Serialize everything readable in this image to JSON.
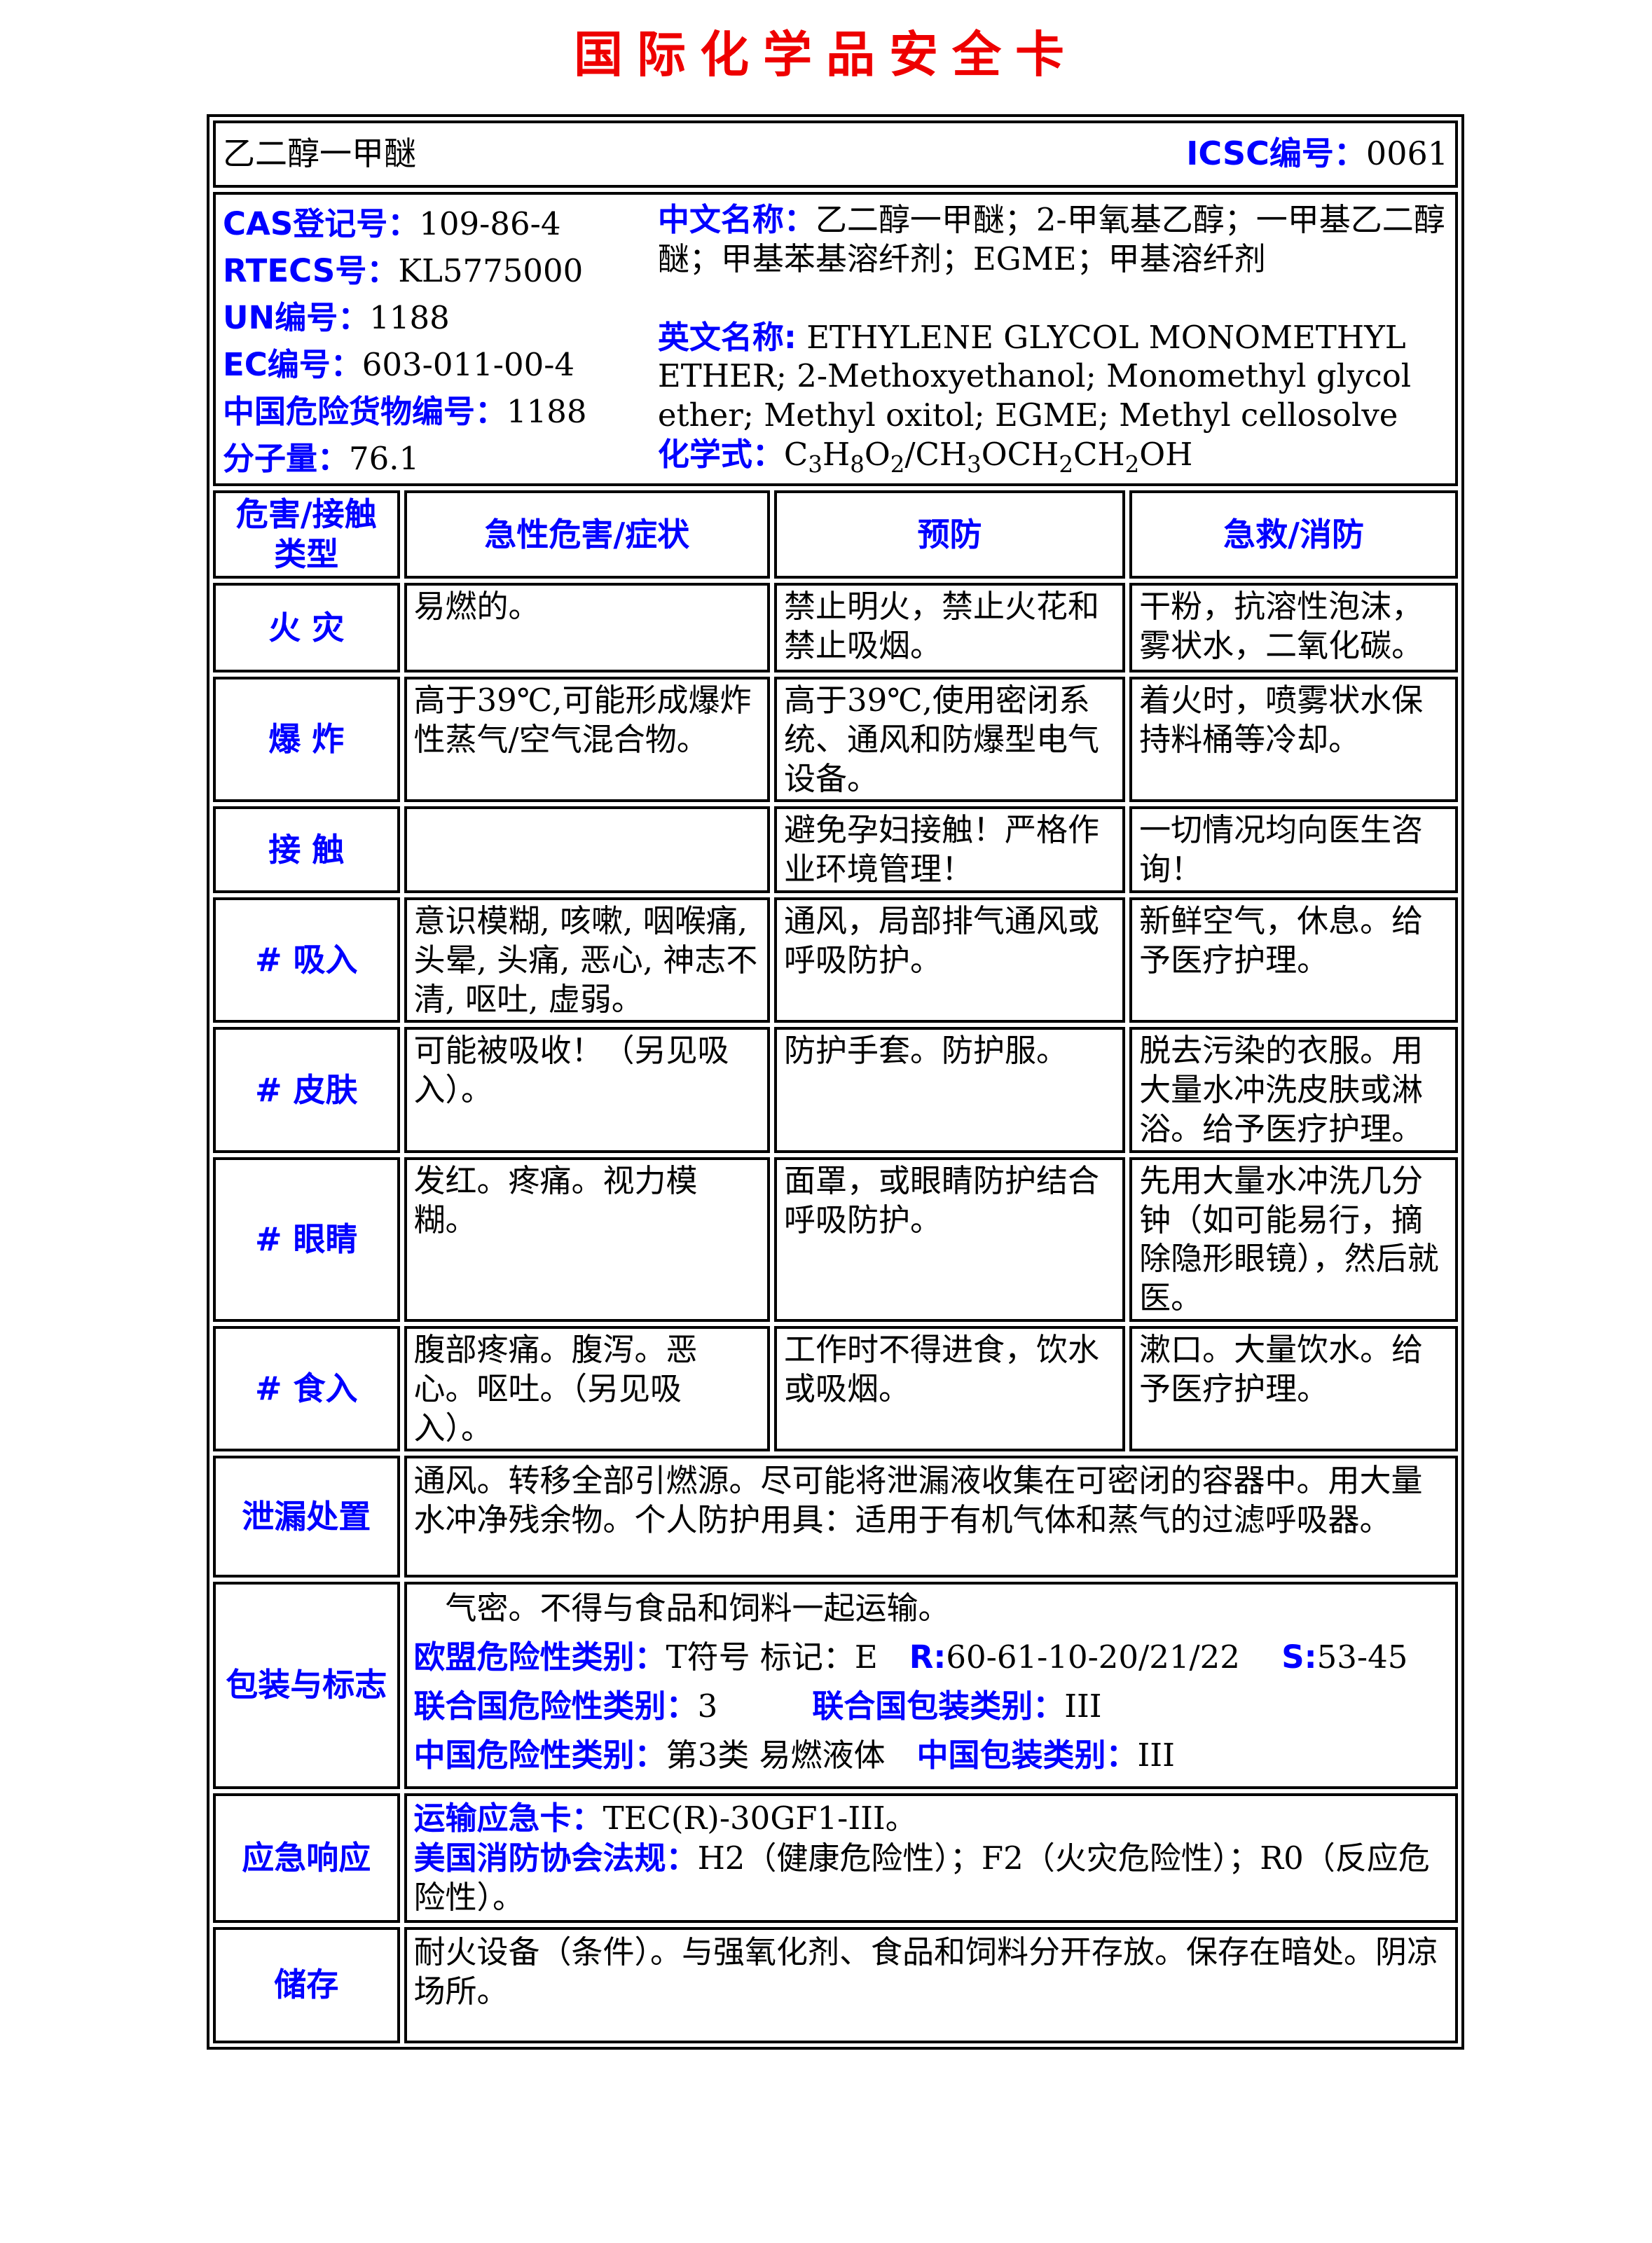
{
  "colors": {
    "accent_blue": "#0000ff",
    "title_red": "#ee0000",
    "border_black": "#000000"
  },
  "page_title": "国际化学品安全卡",
  "header": {
    "name": "乙二醇一甲醚",
    "icsc_label": "ICSC编号：",
    "icsc_number": "0061"
  },
  "identifiers": [
    {
      "label": "CAS登记号：",
      "value": "109-86-4"
    },
    {
      "label": "RTECS号：",
      "value": "KL5775000"
    },
    {
      "label": "UN编号：",
      "value": "1188"
    },
    {
      "label": "EC编号：",
      "value": "603-011-00-4"
    },
    {
      "label": "中国危险货物编号：",
      "value": "1188"
    },
    {
      "label": "分子量：",
      "value": "76.1"
    }
  ],
  "names": {
    "cn_label": "中文名称：",
    "cn_value": "乙二醇一甲醚；2-甲氧基乙醇；一甲基乙二醇醚；甲基苯基溶纤剂；EGME；甲基溶纤剂",
    "en_label": "英文名称:",
    "en_value": "ETHYLENE GLYCOL MONOMETHYL ETHER; 2-Methoxyethanol; Monomethyl glycol ether; Methyl oxitol; EGME; Methyl cellosolve",
    "formula_label": "化学式：",
    "formula_parts": [
      {
        "text": "C"
      },
      {
        "text": "3",
        "sub": true
      },
      {
        "text": "H"
      },
      {
        "text": "8",
        "sub": true
      },
      {
        "text": "O"
      },
      {
        "text": "2",
        "sub": true
      },
      {
        "text": "/CH"
      },
      {
        "text": "3",
        "sub": true
      },
      {
        "text": "OCH"
      },
      {
        "text": "2",
        "sub": true
      },
      {
        "text": "CH"
      },
      {
        "text": "2",
        "sub": true
      },
      {
        "text": "OH"
      }
    ]
  },
  "hazard_table": {
    "headers": {
      "type": "危害/接触\n类型",
      "symptoms": "急性危害/症状",
      "prevention": "预防",
      "response": "急救/消防"
    },
    "rows": [
      {
        "type": "火 灾",
        "symptoms": "易燃的。",
        "prevention": "禁止明火，禁止火花和禁止吸烟。",
        "response": "干粉，抗溶性泡沫，雾状水，二氧化碳。"
      },
      {
        "type": "爆 炸",
        "symptoms": "高于39℃,可能形成爆炸性蒸气/空气混合物。",
        "prevention": "高于39℃,使用密闭系统、通风和防爆型电气设备。",
        "response": "着火时，喷雾状水保持料桶等冷却。"
      },
      {
        "type": "接 触",
        "symptoms": "",
        "prevention": "避免孕妇接触！严格作业环境管理！",
        "response": "一切情况均向医生咨询！"
      },
      {
        "type": "# 吸入",
        "symptoms": "意识模糊, 咳嗽, 咽喉痛, 头晕, 头痛, 恶心, 神志不清, 呕吐, 虚弱。",
        "prevention": "通风，局部排气通风或呼吸防护。",
        "response": "新鲜空气，休息。给予医疗护理。"
      },
      {
        "type": "# 皮肤",
        "symptoms": "可能被吸收！（另见吸入）。",
        "prevention": "防护手套。防护服。",
        "response": "脱去污染的衣服。用大量水冲洗皮肤或淋浴。给予医疗护理。"
      },
      {
        "type": "# 眼睛",
        "symptoms": "发红。疼痛。视力模糊。",
        "prevention": "面罩，或眼睛防护结合呼吸防护。",
        "response": "先用大量水冲洗几分钟（如可能易行，摘除隐形眼镜），然后就医。"
      },
      {
        "type": "# 食入",
        "symptoms": "腹部疼痛。腹泻。恶心。呕吐。（另见吸入）。",
        "prevention": "工作时不得进食，饮水或吸烟。",
        "response": "漱口。大量饮水。给予医疗护理。"
      }
    ]
  },
  "bottom_sections": [
    {
      "label": "泄漏处置",
      "lines": [
        [
          {
            "text": "通风。转移全部引燃源。尽可能将泄漏液收集在可密闭的容器中。用大量水冲净残余物。个人防护用具：适用于有机气体和蒸气的过滤呼吸器。"
          }
        ]
      ]
    },
    {
      "label": "包装与标志",
      "lines": [
        [
          {
            "text": "　气密。不得与食品和饲料一起运输。"
          }
        ],
        [
          {
            "text": "欧盟危险性类别：",
            "blue": true
          },
          {
            "text": "T符号 标记：E　"
          },
          {
            "text": "R:",
            "blue": true
          },
          {
            "text": "60-61-10-20/21/22　 "
          },
          {
            "text": "S:",
            "blue": true
          },
          {
            "text": "53-45"
          }
        ],
        [
          {
            "text": "联合国危险性类别：",
            "blue": true
          },
          {
            "text": "3　　　"
          },
          {
            "text": "联合国包装类别：",
            "blue": true
          },
          {
            "text": "III"
          }
        ],
        [
          {
            "text": "中国危险性类别：",
            "blue": true
          },
          {
            "text": "第3类 易燃液体　"
          },
          {
            "text": "中国包装类别：",
            "blue": true
          },
          {
            "text": "III"
          }
        ]
      ]
    },
    {
      "label": "应急响应",
      "lines": [
        [
          {
            "text": "运输应急卡：",
            "blue": true
          },
          {
            "text": "TEC(R)-30GF1-III。"
          }
        ],
        [
          {
            "text": "美国消防协会法规：",
            "blue": true
          },
          {
            "text": "H2（健康危险性）；F2（火灾危险性）；R0（反应危险性）。"
          }
        ]
      ]
    },
    {
      "label": "储存",
      "lines": [
        [
          {
            "text": "耐火设备（条件）。与强氧化剂、食品和饲料分开存放。保存在暗处。阴凉场所。"
          }
        ]
      ]
    }
  ]
}
